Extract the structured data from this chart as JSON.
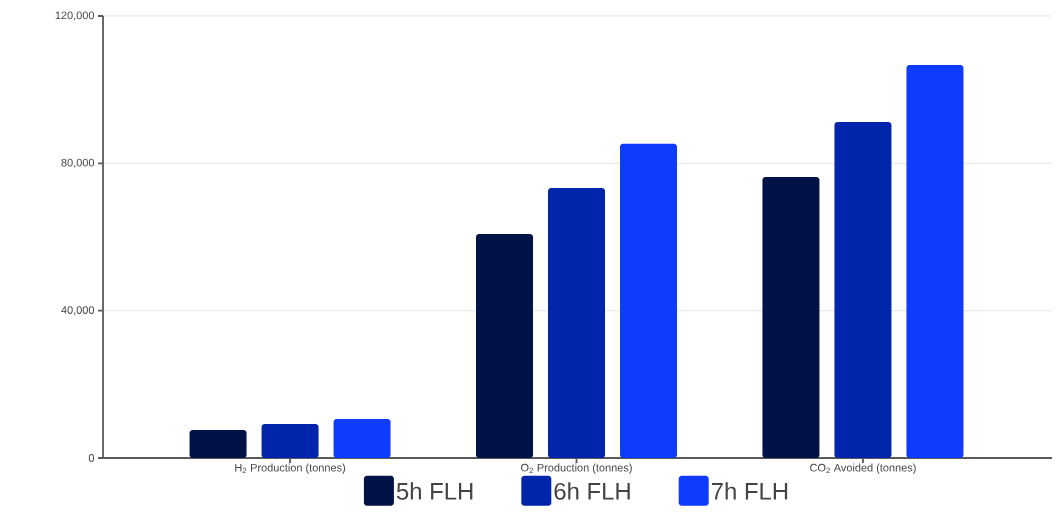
{
  "chart_data": {
    "type": "bar",
    "categories": [
      "H$_{2}$ Production (tonnes)",
      "O$_{2}$ Production (tonnes)",
      "CO$_{2}$ Avoided (tonnes)"
    ],
    "series": [
      {
        "name": "5h FLH",
        "color": "#001246",
        "values": [
          7600,
          60800,
          76300
        ]
      },
      {
        "name": "6h FLH",
        "color": "#0025aa",
        "values": [
          9200,
          73300,
          91200
        ]
      },
      {
        "name": "7h FLH",
        "color": "#0f3bff",
        "values": [
          10600,
          85300,
          106700
        ]
      }
    ],
    "ylim": [
      0,
      120000
    ],
    "yticks": [
      0,
      {
        "value": 40000,
        "label": "40,000"
      },
      {
        "value": 80000,
        "label": "80,000"
      },
      {
        "value": 120000,
        "label": "120,000"
      }
    ],
    "grid": "y",
    "legend": "bottom"
  }
}
